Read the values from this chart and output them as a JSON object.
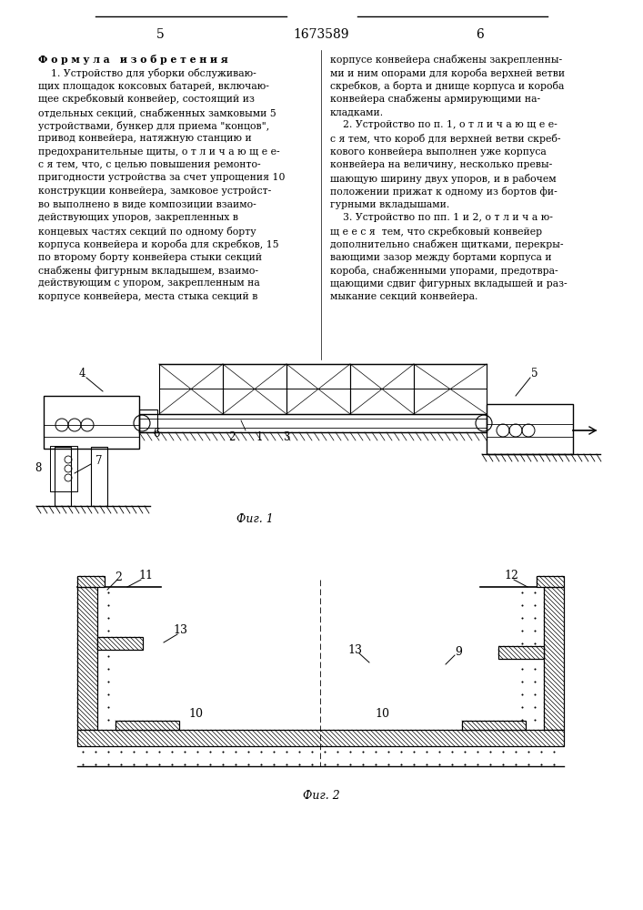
{
  "page_number_left": "5",
  "page_number_center": "1673589",
  "page_number_right": "6",
  "left_column_lines": [
    "Ф о р м у л а   и з о б р е т е н и я",
    "    1. Устройство для уборки обслуживаю-",
    "щих площадок коксовых батарей, включаю-",
    "щее скребковый конвейер, состоящий из",
    "отдельных секций, снабженных замковыми 5",
    "устройствами, бункер для приема \"концов\",",
    "привод конвейера, натяжную станцию и",
    "предохранительные щиты, о т л и ч а ю щ е е-",
    "с я тем, что, с целью повышения ремонто-",
    "пригодности устройства за счет упрощения 10",
    "конструкции конвейера, замковое устройст-",
    "во выполнено в виде композиции взаимо-",
    "действующих упоров, закрепленных в",
    "концевых частях секций по одному борту",
    "корпуса конвейера и короба для скребков, 15",
    "по второму борту конвейера стыки секций",
    "снабжены фигурным вкладышем, взаимо-",
    "действующим с упором, закрепленным на",
    "корпусе конвейера, места стыка секций в"
  ],
  "right_column_lines": [
    "корпусе конвейера снабжены закрепленны-",
    "ми и ним опорами для короба верхней ветви",
    "скребков, а борта и днище корпуса и короба",
    "конвейера снабжены армирующими на-",
    "кладками.",
    "    2. Устройство по п. 1, о т л и ч а ю щ е е-",
    "с я тем, что короб для верхней ветви скреб-",
    "кового конвейера выполнен уже корпуса",
    "конвейера на величину, несколько превы-",
    "шающую ширину двух упоров, и в рабочем",
    "положении прижат к одному из бортов фи-",
    "гурными вкладышами.",
    "    3. Устройство по пп. 1 и 2, о т л и ч а ю-",
    "щ е е с я  тем, что скребковый конвейер",
    "дополнительно снабжен щитками, перекры-",
    "вающими зазор между бортами корпуса и",
    "короба, снабженными упорами, предотвра-",
    "щающими сдвиг фигурных вкладышей и раз-",
    "мыкание секций конвейера."
  ],
  "fig1_caption": "Фиг. 1",
  "fig2_caption": "Фиг. 2",
  "bg_color": "#ffffff",
  "text_color": "#000000"
}
